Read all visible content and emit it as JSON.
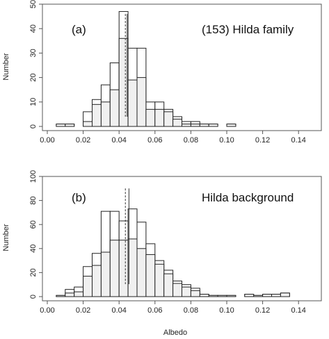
{
  "figure": {
    "xlabel": "Albedo",
    "ylabel": "Number"
  },
  "chart_data": [
    {
      "type": "bar",
      "panel_label": "(a)",
      "annotation": "(153) Hilda family",
      "xlabel": "",
      "ylabel": "Number",
      "xlim": [
        0.0,
        0.15
      ],
      "ylim": [
        0,
        50
      ],
      "xticks": [
        "0.00",
        "0.02",
        "0.04",
        "0.06",
        "0.08",
        "0.10",
        "0.12",
        "0.14"
      ],
      "yticks": [
        "0",
        "10",
        "20",
        "30",
        "40",
        "50"
      ],
      "bin_width": 0.005,
      "series": [
        {
          "bins": [
            {
              "x0": 0.005,
              "filled": 1,
              "outline": 1
            },
            {
              "x0": 0.01,
              "filled": 1,
              "outline": 1
            },
            {
              "x0": 0.02,
              "filled": 2,
              "outline": 6
            },
            {
              "x0": 0.025,
              "filled": 9,
              "outline": 11
            },
            {
              "x0": 0.03,
              "filled": 10,
              "outline": 17
            },
            {
              "x0": 0.035,
              "filled": 15,
              "outline": 26
            },
            {
              "x0": 0.04,
              "filled": 36,
              "outline": 47
            },
            {
              "x0": 0.045,
              "filled": 19,
              "outline": 32
            },
            {
              "x0": 0.05,
              "filled": 20,
              "outline": 32
            },
            {
              "x0": 0.055,
              "filled": 7,
              "outline": 10
            },
            {
              "x0": 0.06,
              "filled": 7,
              "outline": 10
            },
            {
              "x0": 0.065,
              "filled": 6,
              "outline": 7
            },
            {
              "x0": 0.07,
              "filled": 3,
              "outline": 4
            },
            {
              "x0": 0.075,
              "filled": 1,
              "outline": 2
            },
            {
              "x0": 0.08,
              "filled": 1,
              "outline": 2
            },
            {
              "x0": 0.085,
              "filled": 1,
              "outline": 1
            },
            {
              "x0": 0.09,
              "filled": 1,
              "outline": 1
            },
            {
              "x0": 0.1,
              "filled": 1,
              "outline": 1
            }
          ]
        }
      ],
      "markers": [
        {
          "style": "dashed",
          "x": 0.0435
        },
        {
          "style": "solid",
          "x": 0.0445
        }
      ]
    },
    {
      "type": "bar",
      "panel_label": "(b)",
      "annotation": "Hilda background",
      "xlabel": "Albedo",
      "ylabel": "Number",
      "xlim": [
        0.0,
        0.15
      ],
      "ylim": [
        0,
        100
      ],
      "xticks": [
        "0.00",
        "0.02",
        "0.04",
        "0.06",
        "0.08",
        "0.10",
        "0.12",
        "0.14"
      ],
      "yticks": [
        "0",
        "20",
        "40",
        "60",
        "80",
        "100"
      ],
      "bin_width": 0.005,
      "series": [
        {
          "bins": [
            {
              "x0": 0.005,
              "filled": 1,
              "outline": 1
            },
            {
              "x0": 0.01,
              "filled": 3,
              "outline": 6
            },
            {
              "x0": 0.015,
              "filled": 4,
              "outline": 8
            },
            {
              "x0": 0.02,
              "filled": 17,
              "outline": 25
            },
            {
              "x0": 0.025,
              "filled": 26,
              "outline": 36
            },
            {
              "x0": 0.03,
              "filled": 37,
              "outline": 71
            },
            {
              "x0": 0.035,
              "filled": 47,
              "outline": 71
            },
            {
              "x0": 0.04,
              "filled": 47,
              "outline": 63
            },
            {
              "x0": 0.045,
              "filled": 48,
              "outline": 73
            },
            {
              "x0": 0.05,
              "filled": 40,
              "outline": 62
            },
            {
              "x0": 0.055,
              "filled": 35,
              "outline": 44
            },
            {
              "x0": 0.06,
              "filled": 27,
              "outline": 30
            },
            {
              "x0": 0.065,
              "filled": 19,
              "outline": 22
            },
            {
              "x0": 0.07,
              "filled": 11,
              "outline": 13
            },
            {
              "x0": 0.075,
              "filled": 8,
              "outline": 10
            },
            {
              "x0": 0.08,
              "filled": 5,
              "outline": 7
            },
            {
              "x0": 0.085,
              "filled": 2,
              "outline": 2
            },
            {
              "x0": 0.09,
              "filled": 1,
              "outline": 1
            },
            {
              "x0": 0.095,
              "filled": 1,
              "outline": 1
            },
            {
              "x0": 0.1,
              "filled": 1,
              "outline": 1
            },
            {
              "x0": 0.11,
              "filled": 2,
              "outline": 2
            },
            {
              "x0": 0.115,
              "filled": 1,
              "outline": 1
            },
            {
              "x0": 0.12,
              "filled": 2,
              "outline": 2
            },
            {
              "x0": 0.125,
              "filled": 2,
              "outline": 2
            },
            {
              "x0": 0.13,
              "filled": 3,
              "outline": 3
            }
          ]
        }
      ],
      "markers": [
        {
          "style": "dashed",
          "x": 0.0435
        },
        {
          "style": "solid",
          "x": 0.0455
        }
      ]
    }
  ],
  "colors": {
    "filled": "#f0f0f0",
    "outline": "#222222",
    "frame": "#555555",
    "text": "#222222"
  }
}
